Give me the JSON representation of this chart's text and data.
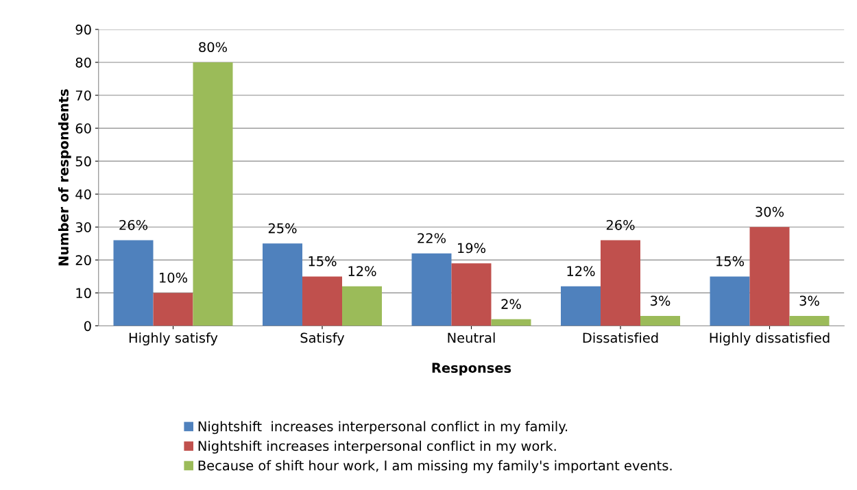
{
  "chart_data": {
    "type": "bar",
    "xlabel": "Responses",
    "ylabel": "Number of respondents",
    "categories": [
      "Highly satisfy",
      "Satisfy",
      "Neutral",
      "Dissatisfied",
      "Highly dissatisfied"
    ],
    "series": [
      {
        "name": "Nightshift  increases interpersonal conflict in my family.",
        "color": "#4f81bd",
        "values": [
          26,
          25,
          22,
          12,
          15
        ],
        "value_labels": [
          "26%",
          "25%",
          "22%",
          "12%",
          "15%"
        ]
      },
      {
        "name": "Nightshift increases interpersonal conflict in my work.",
        "color": "#c0504d",
        "values": [
          10,
          15,
          19,
          26,
          30
        ],
        "value_labels": [
          "10%",
          "15%",
          "19%",
          "26%",
          "30%"
        ]
      },
      {
        "name": "Because of shift hour work, I am missing my family's important events.",
        "color": "#9bbb59",
        "values": [
          80,
          12,
          2,
          3,
          3
        ],
        "value_labels": [
          "80%",
          "12%",
          "2%",
          "3%",
          "3%"
        ]
      }
    ],
    "ylim": [
      0,
      90
    ],
    "yticks": [
      0,
      10,
      20,
      30,
      40,
      50,
      60,
      70,
      80,
      90
    ],
    "grid": "y",
    "legend": "bottom"
  }
}
